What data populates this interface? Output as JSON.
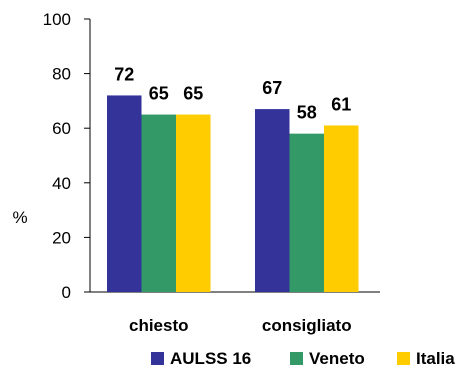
{
  "chart_data": {
    "type": "bar",
    "categories": [
      "chiesto",
      "consigliato"
    ],
    "series": [
      {
        "name": "AULSS 16",
        "values": [
          72,
          67
        ],
        "color": "#333399"
      },
      {
        "name": "Veneto",
        "values": [
          65,
          58
        ],
        "color": "#339966"
      },
      {
        "name": "Italia",
        "values": [
          65,
          61
        ],
        "color": "#FFCC00"
      }
    ],
    "ylabel": "%",
    "ylim": [
      0,
      100
    ],
    "yticks": [
      0,
      20,
      40,
      60,
      80,
      100
    ],
    "grid": false,
    "legend_position": "bottom"
  }
}
